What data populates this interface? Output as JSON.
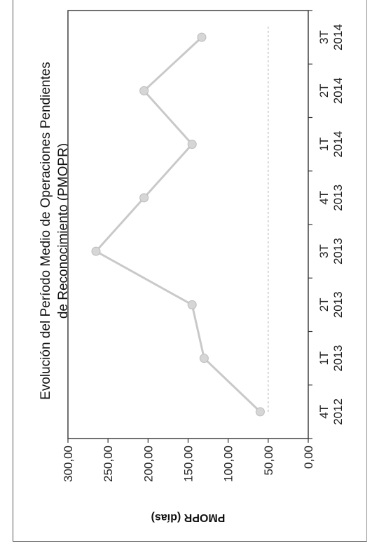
{
  "chart_data": {
    "type": "line",
    "title": "Evolución del Período Medio de Operaciones Pendientes",
    "subtitle": "de Reconocimiento (PMOPR)",
    "ylabel": "PMOPR (días)",
    "xlabel": "",
    "categories": [
      [
        "4T",
        "2012"
      ],
      [
        "1T",
        "2013"
      ],
      [
        "2T",
        "2013"
      ],
      [
        "3T",
        "2013"
      ],
      [
        "4T",
        "2013"
      ],
      [
        "1T",
        "2014"
      ],
      [
        "2T",
        "2014"
      ],
      [
        "3T",
        "2014"
      ]
    ],
    "series": [
      {
        "values": [
          60,
          130,
          145,
          265,
          205,
          145,
          205,
          133
        ]
      }
    ],
    "reference_line": 50,
    "ylim": [
      0,
      300
    ],
    "yticks": [
      "0,00",
      "50,00",
      "100,00",
      "150,00",
      "200,00",
      "250,00",
      "300,00"
    ],
    "ytick_values": [
      0,
      50,
      100,
      150,
      200,
      250,
      300
    ],
    "grid": false,
    "orientation": "rotated-90-counterclockwise",
    "colors": {
      "line": "#c9c9c9",
      "marker": "#d6d6d6",
      "reference": "#bdbdbd",
      "axis": "#333333"
    }
  }
}
